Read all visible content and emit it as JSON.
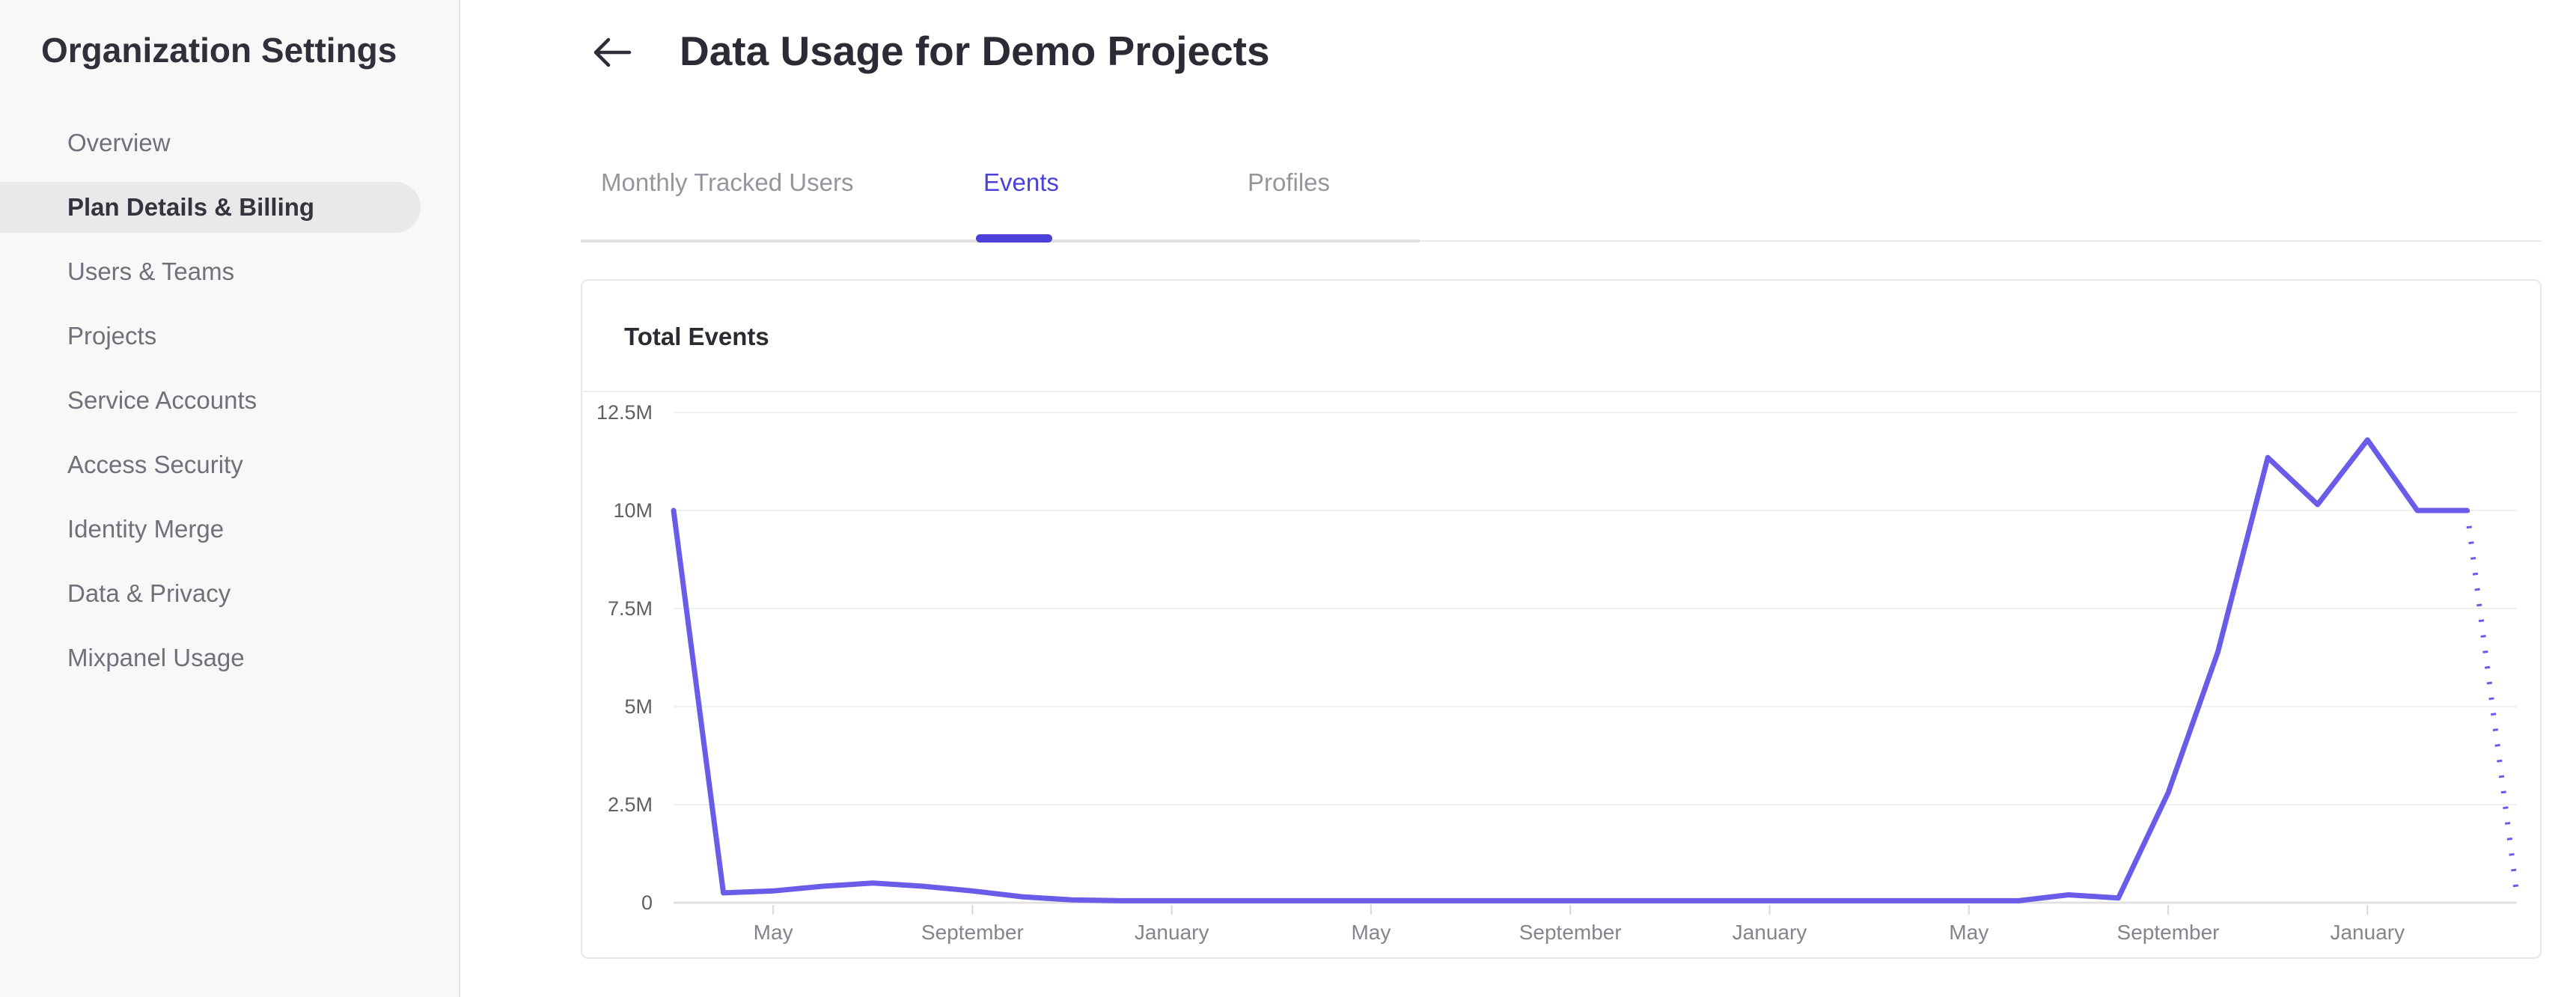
{
  "accent_color": "#4c40da",
  "sidebar": {
    "title": "Organization Settings",
    "items": [
      {
        "label": "Overview",
        "selected": false
      },
      {
        "label": "Plan Details & Billing",
        "selected": true
      },
      {
        "label": "Users & Teams",
        "selected": false
      },
      {
        "label": "Projects",
        "selected": false
      },
      {
        "label": "Service Accounts",
        "selected": false
      },
      {
        "label": "Access Security",
        "selected": false
      },
      {
        "label": "Identity Merge",
        "selected": false
      },
      {
        "label": "Data & Privacy",
        "selected": false
      },
      {
        "label": "Mixpanel Usage",
        "selected": false
      }
    ]
  },
  "header": {
    "title": "Data Usage for Demo Projects",
    "back_icon": "arrow-left"
  },
  "tabs": [
    {
      "label": "Monthly Tracked Users",
      "active": false
    },
    {
      "label": "Events",
      "active": true
    },
    {
      "label": "Profiles",
      "active": false
    }
  ],
  "card": {
    "title": "Total Events"
  },
  "chart_data": {
    "type": "line",
    "title": "Total Events",
    "xlabel": "",
    "ylabel": "",
    "grid": "horizontal-only",
    "legend": "none",
    "x_unit": "month",
    "ylim_millions": [
      0,
      12.5
    ],
    "y_ticks": [
      {
        "label": "12.5M",
        "value_millions": 12.5
      },
      {
        "label": "10M",
        "value_millions": 10
      },
      {
        "label": "7.5M",
        "value_millions": 7.5
      },
      {
        "label": "5M",
        "value_millions": 5
      },
      {
        "label": "2.5M",
        "value_millions": 2.5
      },
      {
        "label": "0",
        "value_millions": 0
      }
    ],
    "x_ticks": [
      {
        "index": 2,
        "label": "May"
      },
      {
        "index": 6,
        "label": "September"
      },
      {
        "index": 10,
        "label": "January"
      },
      {
        "index": 14,
        "label": "May"
      },
      {
        "index": 18,
        "label": "September"
      },
      {
        "index": 22,
        "label": "January"
      },
      {
        "index": 26,
        "label": "May"
      },
      {
        "index": 30,
        "label": "September"
      },
      {
        "index": 34,
        "label": "January"
      }
    ],
    "series": [
      {
        "name": "Total Events",
        "color": "#6a5ce8",
        "dashed_tail_points": 2,
        "values_millions": [
          10,
          0.25,
          0.3,
          0.42,
          0.5,
          0.42,
          0.3,
          0.15,
          0.07,
          0.05,
          0.05,
          0.05,
          0.05,
          0.05,
          0.05,
          0.05,
          0.05,
          0.05,
          0.05,
          0.05,
          0.05,
          0.05,
          0.05,
          0.05,
          0.05,
          0.05,
          0.05,
          0.05,
          0.2,
          0.12,
          2.8,
          6.4,
          11.35,
          10.15,
          11.8,
          10.0,
          10.0,
          0.2
        ]
      }
    ]
  }
}
